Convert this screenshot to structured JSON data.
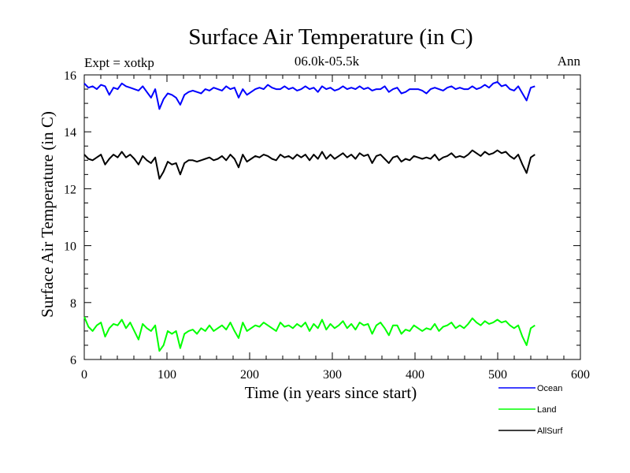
{
  "chart_data": {
    "type": "line",
    "title": "Surface Air Temperature (in C)",
    "subtitle_left": "Expt = xotkp",
    "subtitle_center": "06.0k-05.5k",
    "subtitle_right": "Ann",
    "xlabel": "Time (in years since start)",
    "ylabel": "Surface Air Temperature (in C)",
    "xlim": [
      0,
      600
    ],
    "ylim": [
      6,
      16
    ],
    "x_ticks": [
      "0",
      "100",
      "200",
      "300",
      "400",
      "500",
      "600"
    ],
    "y_ticks": [
      "6",
      "8",
      "10",
      "12",
      "14",
      "16"
    ],
    "legend_position": "bottom-right",
    "series": [
      {
        "name": "Ocean",
        "color": "#0000ff",
        "x_start": 0,
        "x_end": 545,
        "values": [
          15.7,
          15.55,
          15.6,
          15.5,
          15.65,
          15.6,
          15.3,
          15.55,
          15.5,
          15.7,
          15.6,
          15.55,
          15.5,
          15.45,
          15.6,
          15.4,
          15.2,
          15.5,
          14.8,
          15.15,
          15.35,
          15.3,
          15.2,
          14.95,
          15.3,
          15.4,
          15.45,
          15.4,
          15.35,
          15.5,
          15.45,
          15.55,
          15.5,
          15.45,
          15.6,
          15.5,
          15.55,
          15.2,
          15.5,
          15.3,
          15.4,
          15.5,
          15.55,
          15.5,
          15.65,
          15.55,
          15.5,
          15.5,
          15.6,
          15.5,
          15.55,
          15.45,
          15.5,
          15.6,
          15.5,
          15.55,
          15.4,
          15.6,
          15.5,
          15.55,
          15.45,
          15.5,
          15.6,
          15.5,
          15.55,
          15.5,
          15.6,
          15.5,
          15.55,
          15.45,
          15.5,
          15.5,
          15.6,
          15.4,
          15.5,
          15.55,
          15.35,
          15.4,
          15.5,
          15.5,
          15.5,
          15.45,
          15.35,
          15.5,
          15.55,
          15.5,
          15.45,
          15.55,
          15.6,
          15.5,
          15.55,
          15.5,
          15.5,
          15.6,
          15.5,
          15.55,
          15.65,
          15.55,
          15.7,
          15.75,
          15.6,
          15.65,
          15.5,
          15.45,
          15.6,
          15.35,
          15.1,
          15.55,
          15.6
        ]
      },
      {
        "name": "Land",
        "color": "#00ff00",
        "x_start": 0,
        "x_end": 545,
        "values": [
          7.5,
          7.15,
          7.0,
          7.2,
          7.3,
          6.8,
          7.1,
          7.25,
          7.2,
          7.4,
          7.1,
          7.3,
          7.0,
          6.7,
          7.25,
          7.1,
          7.0,
          7.2,
          6.3,
          6.5,
          7.0,
          6.9,
          7.0,
          6.4,
          6.9,
          7.0,
          7.05,
          6.9,
          7.1,
          7.0,
          7.2,
          7.0,
          7.1,
          7.2,
          7.05,
          7.3,
          7.0,
          6.75,
          7.3,
          7.0,
          7.1,
          7.2,
          7.15,
          7.3,
          7.2,
          7.1,
          7.0,
          7.3,
          7.15,
          7.2,
          7.1,
          7.25,
          7.15,
          7.3,
          7.0,
          7.25,
          7.1,
          7.4,
          7.05,
          7.25,
          7.1,
          7.2,
          7.35,
          7.1,
          7.25,
          7.05,
          7.3,
          7.2,
          7.25,
          6.9,
          7.2,
          7.3,
          7.1,
          6.85,
          7.2,
          7.2,
          6.9,
          7.05,
          7.0,
          7.2,
          7.1,
          7.0,
          7.1,
          7.05,
          7.25,
          7.0,
          7.15,
          7.2,
          7.3,
          7.1,
          7.2,
          7.1,
          7.25,
          7.45,
          7.3,
          7.2,
          7.35,
          7.25,
          7.3,
          7.4,
          7.3,
          7.35,
          7.2,
          7.1,
          7.2,
          6.8,
          6.5,
          7.1,
          7.2
        ]
      },
      {
        "name": "AllSurf",
        "color": "#000000",
        "x_start": 0,
        "x_end": 545,
        "values": [
          13.2,
          13.05,
          13.0,
          13.1,
          13.2,
          12.85,
          13.05,
          13.2,
          13.1,
          13.3,
          13.1,
          13.2,
          13.05,
          12.85,
          13.15,
          13.0,
          12.9,
          13.1,
          12.35,
          12.6,
          12.95,
          12.85,
          12.9,
          12.5,
          12.9,
          13.0,
          13.0,
          12.95,
          13.0,
          13.05,
          13.1,
          13.0,
          13.05,
          13.15,
          13.0,
          13.2,
          13.05,
          12.75,
          13.2,
          12.95,
          13.05,
          13.15,
          13.1,
          13.2,
          13.15,
          13.05,
          13.0,
          13.2,
          13.1,
          13.15,
          13.05,
          13.2,
          13.1,
          13.2,
          13.0,
          13.2,
          13.05,
          13.3,
          13.05,
          13.2,
          13.05,
          13.15,
          13.25,
          13.1,
          13.2,
          13.05,
          13.25,
          13.15,
          13.2,
          12.9,
          13.15,
          13.2,
          13.05,
          12.9,
          13.1,
          13.15,
          12.95,
          13.05,
          13.0,
          13.15,
          13.1,
          13.05,
          13.1,
          13.05,
          13.2,
          13.0,
          13.1,
          13.15,
          13.25,
          13.1,
          13.15,
          13.1,
          13.2,
          13.35,
          13.25,
          13.15,
          13.3,
          13.2,
          13.25,
          13.35,
          13.25,
          13.3,
          13.15,
          13.05,
          13.2,
          12.85,
          12.55,
          13.1,
          13.2
        ]
      }
    ]
  }
}
